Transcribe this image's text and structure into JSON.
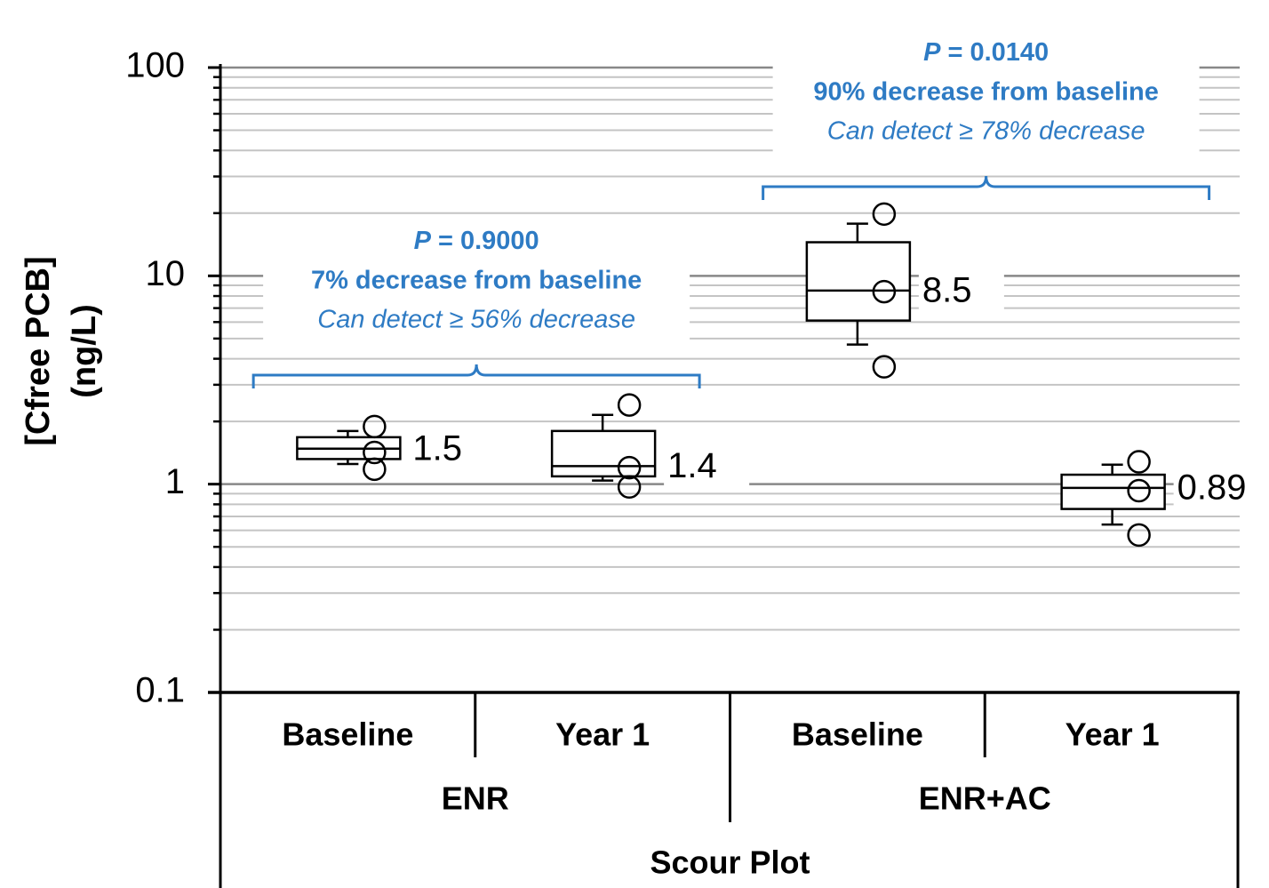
{
  "chart_data": {
    "type": "box",
    "y_label": [
      "[Cfree PCB]",
      "(ng/L)"
    ],
    "log_y": true,
    "ylim": [
      0.1,
      100
    ],
    "yticks": [
      0.1,
      1,
      10,
      100
    ],
    "minor_yticks": [
      0.2,
      0.3,
      0.4,
      0.5,
      0.6,
      0.7,
      0.8,
      0.9,
      2,
      3,
      4,
      5,
      6,
      7,
      8,
      9,
      20,
      30,
      40,
      50,
      60,
      70,
      80,
      90
    ],
    "grid": true,
    "categories": [
      "Baseline",
      "Year 1",
      "Baseline",
      "Year 1"
    ],
    "groups": [
      {
        "name": "ENR",
        "size": 2
      },
      {
        "name": "ENR+AC",
        "size": 2
      }
    ],
    "x_title": "Scour Plot",
    "color": "#000000",
    "boxes": [
      {
        "whisker_low": 1.25,
        "q1": 1.32,
        "median": 1.48,
        "q3": 1.68,
        "whisker_high": 1.8,
        "points": [
          1.89,
          1.42,
          1.18
        ],
        "label": 1.5
      },
      {
        "whisker_low": 1.04,
        "q1": 1.09,
        "median": 1.22,
        "q3": 1.8,
        "whisker_high": 2.15,
        "points": [
          2.4,
          1.2,
          0.97
        ],
        "label": 1.4
      },
      {
        "whisker_low": 4.68,
        "q1": 6.1,
        "median": 8.5,
        "q3": 14.5,
        "whisker_high": 17.8,
        "points": [
          19.8,
          8.4,
          3.66
        ],
        "label": 8.5
      },
      {
        "whisker_low": 0.64,
        "q1": 0.76,
        "median": 0.96,
        "q3": 1.11,
        "whisker_high": 1.24,
        "points": [
          1.28,
          0.93,
          0.57
        ],
        "label": 0.89
      }
    ],
    "annotation_color": "#2e7bc4",
    "annotations": [
      {
        "from": 0,
        "to": 1,
        "p": "P",
        "p_value": " = 0.9000",
        "change": "7% decrease from baseline",
        "detect": "Can detect ≥ 56% decrease"
      },
      {
        "from": 2,
        "to": 3,
        "p": "P",
        "p_value": " = 0.0140",
        "change": "90% decrease from baseline",
        "detect": "Can detect ≥ 78% decrease"
      }
    ]
  }
}
